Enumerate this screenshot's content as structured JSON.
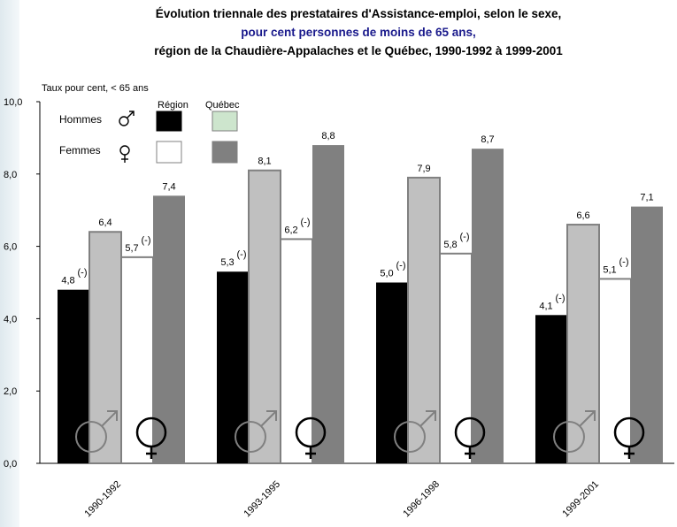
{
  "title_line1": "Évolution triennale des prestataires d'Assistance-emploi, selon le sexe,",
  "title_line2": "pour cent personnes de moins de 65 ans,",
  "title_line3": "région de la Chaudière-Appalaches et le Québec, 1990-1992 à 1999-2001",
  "legend": {
    "col_region": "Région",
    "col_quebec": "Québec",
    "row_hommes": "Hommes",
    "row_femmes": "Femmes"
  },
  "colors": {
    "hommes_region": "#000000",
    "hommes_quebec": "#c0c0c0",
    "femmes_region": "#ffffff",
    "femmes_quebec": "#808080",
    "legend_hommes_quebec": "#cde5cd",
    "stroke": "#808080"
  },
  "chart_data": {
    "type": "bar",
    "ylabel": "Taux pour cent, < 65 ans",
    "ylim": [
      0,
      10
    ],
    "yticks": [
      "0,0",
      "2,0",
      "4,0",
      "6,0",
      "8,0",
      "10,0"
    ],
    "categories": [
      "1990-1992",
      "1993-1995",
      "1996-1998",
      "1999-2001"
    ],
    "series": [
      {
        "key": "hommes_region",
        "values": [
          4.8,
          5.3,
          5.0,
          4.1
        ],
        "labels": [
          "4,8",
          "5,3",
          "5,0",
          "4,1"
        ],
        "flags": [
          "(-)",
          "(-)",
          "(-)",
          "(-)"
        ]
      },
      {
        "key": "hommes_quebec",
        "values": [
          6.4,
          8.1,
          7.9,
          6.6
        ],
        "labels": [
          "6,4",
          "8,1",
          "7,9",
          "6,6"
        ],
        "flags": [
          "",
          "",
          "",
          ""
        ]
      },
      {
        "key": "femmes_region",
        "values": [
          5.7,
          6.2,
          5.8,
          5.1
        ],
        "labels": [
          "5,7",
          "6,2",
          "5,8",
          "5,1"
        ],
        "flags": [
          "(-)",
          "(-)",
          "(-)",
          "(-)"
        ]
      },
      {
        "key": "femmes_quebec",
        "values": [
          7.4,
          8.8,
          8.7,
          7.1
        ],
        "labels": [
          "7,4",
          "8,8",
          "8,7",
          "7,1"
        ],
        "flags": [
          "",
          "",
          "",
          ""
        ]
      }
    ],
    "legend_placement": "top-left",
    "grid": false
  }
}
